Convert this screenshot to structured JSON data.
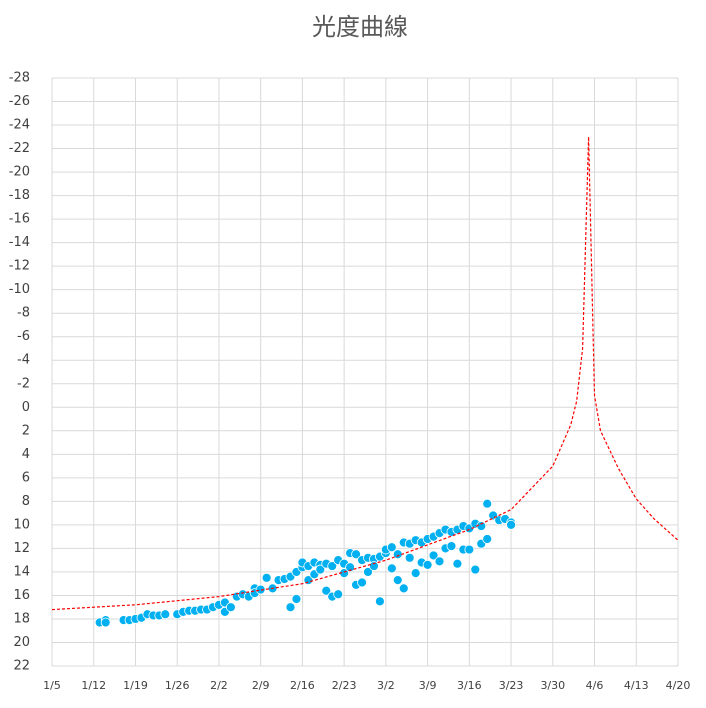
{
  "chart_data": {
    "type": "scatter",
    "title": "光度曲線",
    "xlim": [
      "1/5",
      "4/20"
    ],
    "xticks": [
      "1/5",
      "1/12",
      "1/19",
      "1/26",
      "2/2",
      "2/9",
      "2/16",
      "2/23",
      "3/2",
      "3/9",
      "3/16",
      "3/23",
      "3/30",
      "4/6",
      "4/13",
      "4/20"
    ],
    "ylim": [
      22,
      -28
    ],
    "yticks": [
      -28,
      -26,
      -24,
      -22,
      -20,
      -18,
      -16,
      -14,
      -12,
      -10,
      -8,
      -6,
      -4,
      -2,
      0,
      2,
      4,
      6,
      8,
      10,
      12,
      14,
      16,
      18,
      20,
      22
    ],
    "grid": true,
    "series": [
      {
        "color": "#00b0f0",
        "mode": "markers",
        "x": [
          "1/13",
          "1/14",
          "1/14",
          "1/17",
          "1/18",
          "1/19",
          "1/20",
          "1/21",
          "1/22",
          "1/23",
          "1/24",
          "1/26",
          "1/27",
          "1/28",
          "1/29",
          "1/30",
          "1/31",
          "2/1",
          "2/2",
          "2/3",
          "2/3",
          "2/4",
          "2/5",
          "2/6",
          "2/7",
          "2/8",
          "2/8",
          "2/9",
          "2/10",
          "2/11",
          "2/12",
          "2/13",
          "2/14",
          "2/14",
          "2/15",
          "2/15",
          "2/16",
          "2/16",
          "2/17",
          "2/17",
          "2/18",
          "2/18",
          "2/19",
          "2/19",
          "2/20",
          "2/20",
          "2/21",
          "2/21",
          "2/22",
          "2/22",
          "2/23",
          "2/23",
          "2/24",
          "2/24",
          "2/25",
          "2/25",
          "2/26",
          "2/26",
          "2/27",
          "2/27",
          "2/28",
          "2/28",
          "3/1",
          "3/1",
          "3/2",
          "3/2",
          "3/3",
          "3/3",
          "3/4",
          "3/4",
          "3/5",
          "3/5",
          "3/6",
          "3/6",
          "3/7",
          "3/7",
          "3/8",
          "3/8",
          "3/9",
          "3/9",
          "3/10",
          "3/10",
          "3/11",
          "3/11",
          "3/12",
          "3/12",
          "3/13",
          "3/13",
          "3/14",
          "3/14",
          "3/15",
          "3/15",
          "3/16",
          "3/16",
          "3/17",
          "3/17",
          "3/18",
          "3/18",
          "3/19",
          "3/19",
          "3/20",
          "3/21",
          "3/22",
          "3/23",
          "3/23"
        ],
        "values": [
          18.3,
          18.1,
          18.3,
          18.1,
          18.1,
          18.0,
          17.9,
          17.6,
          17.7,
          17.7,
          17.6,
          17.6,
          17.4,
          17.3,
          17.3,
          17.2,
          17.2,
          17.0,
          16.8,
          17.4,
          16.6,
          17.0,
          16.1,
          15.9,
          16.1,
          15.4,
          15.8,
          15.5,
          14.5,
          15.4,
          14.7,
          14.6,
          14.4,
          17.0,
          16.3,
          14.0,
          13.6,
          13.2,
          13.5,
          14.7,
          13.2,
          14.2,
          13.4,
          13.8,
          13.3,
          15.6,
          16.1,
          13.5,
          13.0,
          15.9,
          14.1,
          13.3,
          12.4,
          13.6,
          12.5,
          15.1,
          14.9,
          13.0,
          12.8,
          14.0,
          12.9,
          13.5,
          12.7,
          16.5,
          12.4,
          12.1,
          11.9,
          13.7,
          12.5,
          14.7,
          11.5,
          15.4,
          11.6,
          12.8,
          11.3,
          14.1,
          11.5,
          13.2,
          11.2,
          13.4,
          11.0,
          12.6,
          10.7,
          13.1,
          10.4,
          12.0,
          10.6,
          11.8,
          10.4,
          13.3,
          10.1,
          12.1,
          10.3,
          12.1,
          9.9,
          13.8,
          10.1,
          11.6,
          8.2,
          11.2,
          9.2,
          9.6,
          9.5,
          9.8,
          10.0
        ]
      },
      {
        "color": "#ff0000",
        "mode": "dashed-line",
        "x": [
          "1/5",
          "1/19",
          "2/2",
          "2/16",
          "3/2",
          "3/16",
          "3/23",
          "3/30",
          "4/2",
          "4/3",
          "4/4",
          "4/5",
          "4/6",
          "4/7",
          "4/10",
          "4/13",
          "4/16",
          "4/20"
        ],
        "values": [
          17.2,
          16.8,
          16.1,
          15.0,
          13.0,
          10.4,
          8.7,
          5.0,
          1.5,
          -0.5,
          -5,
          -23,
          -1,
          2.0,
          5.2,
          7.8,
          9.5,
          11.3
        ]
      }
    ]
  }
}
